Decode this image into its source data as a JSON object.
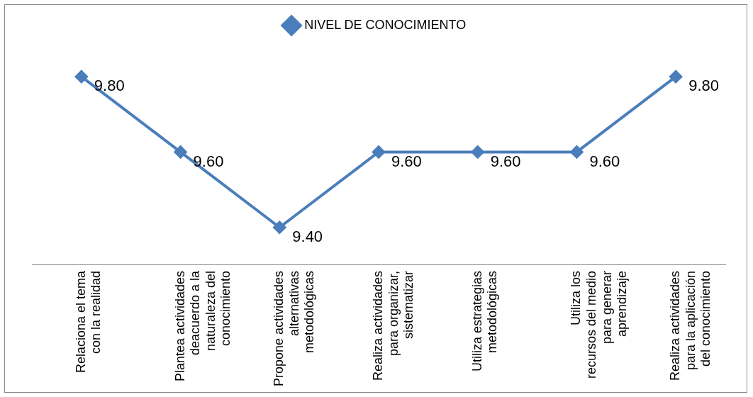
{
  "chart_data": {
    "type": "line",
    "categories": [
      "Relaciona el tema con la realidad",
      "Plantea actividades deacuerdo a la naturaleza del conocimiento",
      "Propone actividades alternativas metodológicas",
      "Realiza actividades para organizar, sistematizar",
      "Utiliza estrategias metodológicas",
      "Utiliza los recursos del medio para generar aprendizaje",
      "Realiza actividades para la aplicación del conocimiento"
    ],
    "series": [
      {
        "name": "NIVEL DE CONOCIMIENTO",
        "color": "#4a7ebb",
        "values": [
          9.8,
          9.6,
          9.4,
          9.6,
          9.6,
          9.6,
          9.8
        ],
        "value_labels": [
          "9.80",
          "9.60",
          "9.40",
          "9.60",
          "9.60",
          "9.60",
          "9.80"
        ]
      }
    ],
    "tick_labels": "x",
    "grid": false,
    "legend": "top",
    "marker": "diamond",
    "line_style": "solid"
  }
}
